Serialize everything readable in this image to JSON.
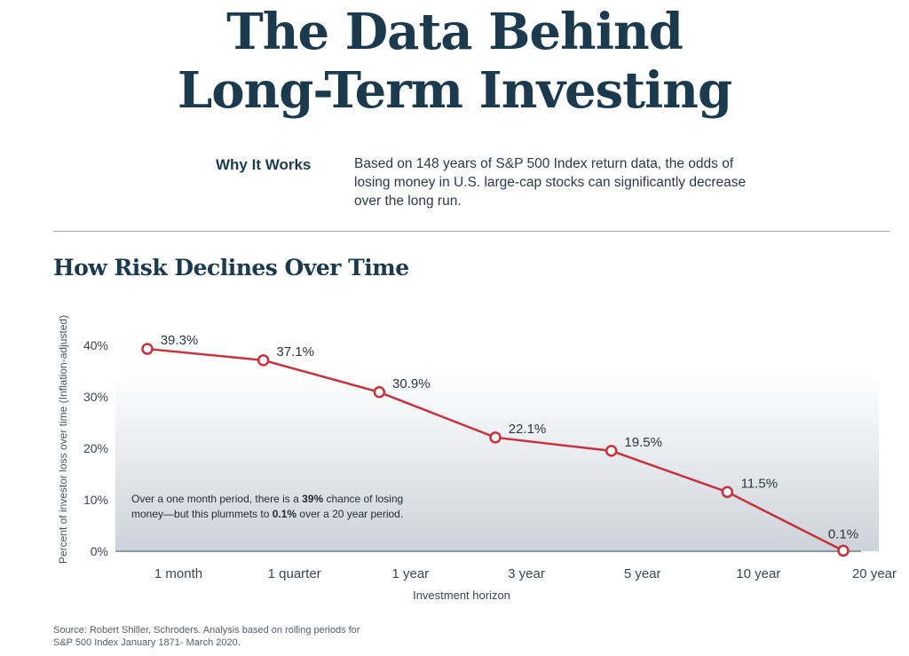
{
  "header": {
    "title_line1": "The Data Behind",
    "title_line2": "Long-Term Investing"
  },
  "intro": {
    "label": "Why It Works",
    "text": "Based on 148 years of S&P 500 Index return data, the odds of losing money in U.S. large-cap stocks can significantly decrease over the long run."
  },
  "note": {
    "part1": "Over a one month period, there is a ",
    "bold1": "39%",
    "part2": " chance of losing money—but this plummets to ",
    "bold2": "0.1%",
    "part3": " over a 20 year period."
  },
  "source": "Source: Robert Shiller, Schroders. Analysis based on rolling periods for S&P 500 Index January 1871- March 2020.",
  "colors": {
    "line": "#c8323f",
    "title": "#1b3a4e"
  },
  "chart_data": {
    "type": "line",
    "title": "How Risk Declines Over Time",
    "xlabel": "Investment horizon",
    "ylabel": "Percent of investor loss over time (Inflation-adjusted)",
    "categories": [
      "1 month",
      "1 quarter",
      "1 year",
      "3 year",
      "5 year",
      "10 year",
      "20 year"
    ],
    "values": [
      39.3,
      37.1,
      30.9,
      22.1,
      19.5,
      11.5,
      0.1
    ],
    "value_labels": [
      "39.3%",
      "37.1%",
      "30.9%",
      "22.1%",
      "19.5%",
      "11.5%",
      "0.1%"
    ],
    "yticks": [
      0,
      10,
      20,
      30,
      40
    ],
    "ytick_labels": [
      "0%",
      "10%",
      "20%",
      "30%",
      "40%"
    ],
    "ylim": [
      0,
      40
    ],
    "grid": false
  }
}
